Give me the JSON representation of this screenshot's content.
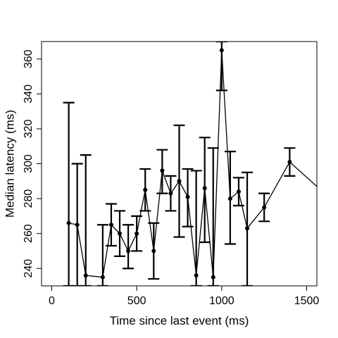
{
  "chart_data": {
    "type": "line",
    "title": "",
    "xlabel": "Time since last event (ms)",
    "ylabel": "Median latency (ms)",
    "xlim": [
      -60,
      1560
    ],
    "ylim": [
      230,
      370
    ],
    "xticks": [
      0,
      500,
      1000,
      1500
    ],
    "yticks": [
      240,
      260,
      280,
      300,
      320,
      340,
      360
    ],
    "grid": false,
    "legend": "none",
    "colors": {
      "line": "#000000",
      "background": "#ffffff"
    },
    "series": [
      {
        "x": [
          100,
          150,
          200,
          300,
          350,
          400,
          450,
          500,
          550,
          600,
          650,
          700,
          750,
          800,
          850,
          900,
          950,
          1000,
          1050,
          1100,
          1150,
          1250,
          1400,
          1560
        ],
        "y": [
          266,
          265,
          236,
          235,
          265,
          260,
          250,
          260,
          285,
          250,
          296,
          283,
          290,
          281,
          236,
          286,
          235,
          365,
          280,
          284,
          263,
          275,
          301,
          287
        ],
        "low": [
          230,
          230,
          230,
          230,
          253,
          247,
          240,
          250,
          273,
          234,
          283,
          273,
          258,
          264,
          230,
          255,
          230,
          342,
          254,
          276,
          230,
          267,
          293,
          null
        ],
        "high": [
          335,
          300,
          305,
          265,
          277,
          273,
          265,
          270,
          297,
          266,
          308,
          293,
          322,
          297,
          296,
          315,
          309,
          370,
          307,
          292,
          295,
          283,
          309,
          null
        ]
      }
    ]
  }
}
